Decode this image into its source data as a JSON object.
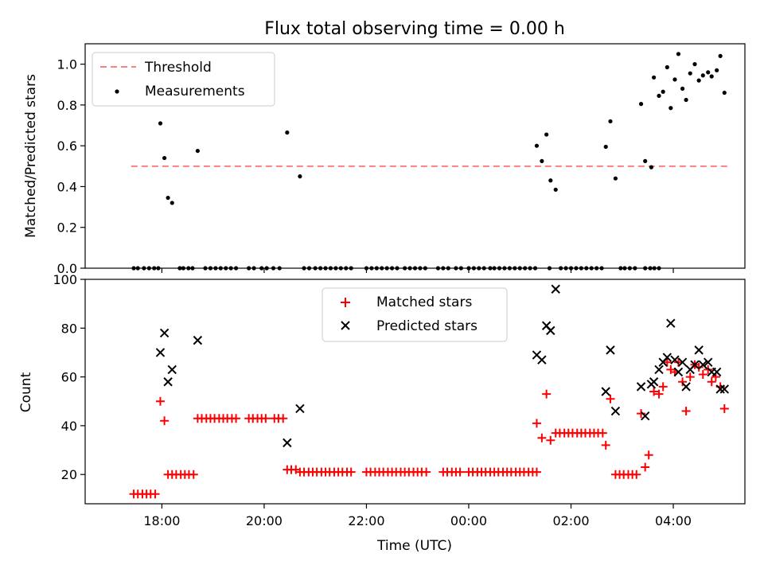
{
  "title": "Flux total observing time = 0.00 h",
  "chart_data": [
    {
      "type": "scatter",
      "ylabel": "Matched/Predicted stars",
      "ylim": [
        0,
        1.1
      ],
      "yticks": [
        "0.0",
        "0.2",
        "0.4",
        "0.6",
        "0.8",
        "1.0"
      ],
      "legend_position": "top-left",
      "threshold": {
        "name": "Threshold",
        "value": 0.5,
        "color": "#ff7f7f",
        "x_range": [
          17.4,
          5.1
        ]
      },
      "series": [
        {
          "name": "Measurements",
          "color": "#000000",
          "points": [
            [
              17.97,
              0.71
            ],
            [
              18.05,
              0.54
            ],
            [
              18.12,
              0.345
            ],
            [
              18.2,
              0.32
            ],
            [
              18.7,
              0.575
            ],
            [
              20.45,
              0.665
            ],
            [
              20.7,
              0.45
            ],
            [
              1.33,
              0.6
            ],
            [
              1.43,
              0.525
            ],
            [
              1.52,
              0.655
            ],
            [
              1.6,
              0.43
            ],
            [
              1.7,
              0.385
            ],
            [
              2.68,
              0.595
            ],
            [
              2.77,
              0.72
            ],
            [
              2.87,
              0.44
            ],
            [
              3.37,
              0.805
            ],
            [
              3.45,
              0.525
            ],
            [
              3.57,
              0.495
            ],
            [
              3.62,
              0.935
            ],
            [
              3.72,
              0.845
            ],
            [
              3.8,
              0.865
            ],
            [
              3.88,
              0.985
            ],
            [
              3.95,
              0.785
            ],
            [
              4.03,
              0.925
            ],
            [
              4.1,
              1.05
            ],
            [
              4.18,
              0.88
            ],
            [
              4.25,
              0.825
            ],
            [
              4.33,
              0.955
            ],
            [
              4.42,
              1.0
            ],
            [
              4.5,
              0.92
            ],
            [
              4.58,
              0.945
            ],
            [
              4.68,
              0.96
            ],
            [
              4.75,
              0.94
            ],
            [
              4.85,
              0.97
            ],
            [
              4.92,
              1.04
            ],
            [
              5.0,
              0.86
            ]
          ],
          "zeros": [
            17.45,
            17.53,
            17.65,
            17.75,
            17.85,
            17.93,
            18.35,
            18.42,
            18.52,
            18.6,
            18.85,
            18.95,
            19.05,
            19.15,
            19.25,
            19.35,
            19.45,
            19.7,
            19.8,
            19.95,
            20.05,
            20.18,
            20.3,
            20.78,
            20.88,
            21.0,
            21.1,
            21.2,
            21.3,
            21.4,
            21.5,
            21.6,
            21.7,
            22.0,
            22.1,
            22.2,
            22.3,
            22.4,
            22.5,
            22.6,
            22.75,
            22.85,
            22.95,
            23.05,
            23.15,
            23.4,
            23.5,
            23.6,
            23.75,
            23.85,
            0.0,
            0.1,
            0.2,
            0.3,
            0.42,
            0.5,
            0.6,
            0.7,
            0.8,
            0.9,
            1.0,
            1.1,
            1.2,
            1.3,
            1.58,
            1.8,
            1.9,
            2.0,
            2.1,
            2.2,
            2.3,
            2.4,
            2.5,
            2.6,
            2.97,
            3.05,
            3.15,
            3.25,
            3.45,
            3.55,
            3.63,
            3.72
          ]
        }
      ]
    },
    {
      "type": "scatter",
      "xlabel": "Time (UTC)",
      "ylabel": "Count",
      "ylim": [
        8,
        100
      ],
      "yticks": [
        "20",
        "40",
        "60",
        "80",
        "100"
      ],
      "xticks": [
        "18:00",
        "20:00",
        "22:00",
        "00:00",
        "02:00",
        "04:00"
      ],
      "legend_position": "top-center",
      "series": [
        {
          "name": "Matched stars",
          "color": "#ff0000",
          "marker": "plus",
          "points": [
            [
              17.45,
              12
            ],
            [
              17.53,
              12
            ],
            [
              17.62,
              12
            ],
            [
              17.7,
              12
            ],
            [
              17.78,
              12
            ],
            [
              17.87,
              12
            ],
            [
              17.97,
              50
            ],
            [
              18.05,
              42
            ],
            [
              18.12,
              20
            ],
            [
              18.2,
              20
            ],
            [
              18.28,
              20
            ],
            [
              18.37,
              20
            ],
            [
              18.45,
              20
            ],
            [
              18.53,
              20
            ],
            [
              18.62,
              20
            ],
            [
              18.7,
              43
            ],
            [
              18.78,
              43
            ],
            [
              18.87,
              43
            ],
            [
              18.95,
              43
            ],
            [
              19.03,
              43
            ],
            [
              19.12,
              43
            ],
            [
              19.2,
              43
            ],
            [
              19.28,
              43
            ],
            [
              19.37,
              43
            ],
            [
              19.45,
              43
            ],
            [
              19.7,
              43
            ],
            [
              19.78,
              43
            ],
            [
              19.87,
              43
            ],
            [
              19.95,
              43
            ],
            [
              20.03,
              43
            ],
            [
              20.2,
              43
            ],
            [
              20.28,
              43
            ],
            [
              20.37,
              43
            ],
            [
              20.45,
              22
            ],
            [
              20.53,
              22
            ],
            [
              20.62,
              22
            ],
            [
              20.7,
              21
            ],
            [
              20.78,
              21
            ],
            [
              20.87,
              21
            ],
            [
              20.95,
              21
            ],
            [
              21.03,
              21
            ],
            [
              21.12,
              21
            ],
            [
              21.2,
              21
            ],
            [
              21.28,
              21
            ],
            [
              21.37,
              21
            ],
            [
              21.45,
              21
            ],
            [
              21.53,
              21
            ],
            [
              21.62,
              21
            ],
            [
              21.7,
              21
            ],
            [
              22.0,
              21
            ],
            [
              22.08,
              21
            ],
            [
              22.17,
              21
            ],
            [
              22.25,
              21
            ],
            [
              22.33,
              21
            ],
            [
              22.42,
              21
            ],
            [
              22.5,
              21
            ],
            [
              22.58,
              21
            ],
            [
              22.67,
              21
            ],
            [
              22.75,
              21
            ],
            [
              22.83,
              21
            ],
            [
              22.92,
              21
            ],
            [
              23.0,
              21
            ],
            [
              23.08,
              21
            ],
            [
              23.17,
              21
            ],
            [
              23.5,
              21
            ],
            [
              23.58,
              21
            ],
            [
              23.67,
              21
            ],
            [
              23.75,
              21
            ],
            [
              23.83,
              21
            ],
            [
              0.0,
              21
            ],
            [
              0.08,
              21
            ],
            [
              0.17,
              21
            ],
            [
              0.25,
              21
            ],
            [
              0.33,
              21
            ],
            [
              0.42,
              21
            ],
            [
              0.5,
              21
            ],
            [
              0.58,
              21
            ],
            [
              0.67,
              21
            ],
            [
              0.75,
              21
            ],
            [
              0.83,
              21
            ],
            [
              0.92,
              21
            ],
            [
              1.0,
              21
            ],
            [
              1.08,
              21
            ],
            [
              1.17,
              21
            ],
            [
              1.25,
              21
            ],
            [
              1.33,
              21
            ],
            [
              1.33,
              41
            ],
            [
              1.43,
              35
            ],
            [
              1.52,
              53
            ],
            [
              1.6,
              34
            ],
            [
              1.7,
              37
            ],
            [
              1.78,
              37
            ],
            [
              1.87,
              37
            ],
            [
              1.95,
              37
            ],
            [
              2.03,
              37
            ],
            [
              2.12,
              37
            ],
            [
              2.2,
              37
            ],
            [
              2.28,
              37
            ],
            [
              2.37,
              37
            ],
            [
              2.45,
              37
            ],
            [
              2.53,
              37
            ],
            [
              2.62,
              37
            ],
            [
              2.68,
              32
            ],
            [
              2.77,
              51
            ],
            [
              2.87,
              20
            ],
            [
              2.95,
              20
            ],
            [
              3.03,
              20
            ],
            [
              3.12,
              20
            ],
            [
              3.2,
              20
            ],
            [
              3.28,
              20
            ],
            [
              3.37,
              45
            ],
            [
              3.45,
              23
            ],
            [
              3.52,
              28
            ],
            [
              3.62,
              54
            ],
            [
              3.72,
              53
            ],
            [
              3.8,
              56
            ],
            [
              3.88,
              66
            ],
            [
              3.95,
              63
            ],
            [
              4.03,
              62
            ],
            [
              4.1,
              66
            ],
            [
              4.18,
              58
            ],
            [
              4.25,
              46
            ],
            [
              4.33,
              60
            ],
            [
              4.42,
              65
            ],
            [
              4.5,
              64
            ],
            [
              4.58,
              61
            ],
            [
              4.68,
              63
            ],
            [
              4.75,
              58
            ],
            [
              4.83,
              60
            ],
            [
              4.92,
              56
            ],
            [
              5.0,
              47
            ]
          ]
        },
        {
          "name": "Predicted stars",
          "color": "#000000",
          "marker": "x",
          "points": [
            [
              17.97,
              70
            ],
            [
              18.05,
              78
            ],
            [
              18.12,
              58
            ],
            [
              18.2,
              63
            ],
            [
              18.7,
              75
            ],
            [
              20.45,
              33
            ],
            [
              20.7,
              47
            ],
            [
              1.33,
              69
            ],
            [
              1.43,
              67
            ],
            [
              1.52,
              81
            ],
            [
              1.6,
              79
            ],
            [
              1.7,
              96
            ],
            [
              2.68,
              54
            ],
            [
              2.77,
              71
            ],
            [
              2.87,
              46
            ],
            [
              3.37,
              56
            ],
            [
              3.45,
              44
            ],
            [
              3.57,
              57
            ],
            [
              3.62,
              58
            ],
            [
              3.72,
              63
            ],
            [
              3.8,
              66
            ],
            [
              3.88,
              68
            ],
            [
              3.95,
              82
            ],
            [
              4.03,
              67
            ],
            [
              4.1,
              62
            ],
            [
              4.18,
              66
            ],
            [
              4.25,
              56
            ],
            [
              4.33,
              63
            ],
            [
              4.42,
              65
            ],
            [
              4.5,
              71
            ],
            [
              4.58,
              65
            ],
            [
              4.68,
              66
            ],
            [
              4.75,
              62
            ],
            [
              4.85,
              62
            ],
            [
              4.92,
              55
            ],
            [
              5.0,
              55
            ]
          ]
        }
      ]
    }
  ]
}
